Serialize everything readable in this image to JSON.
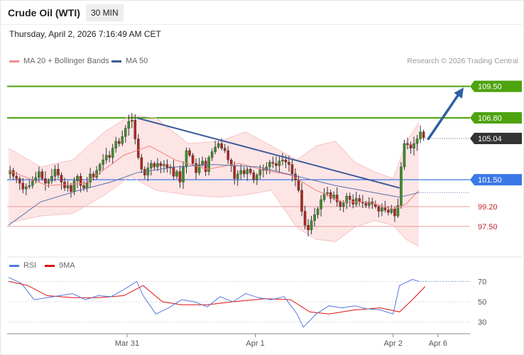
{
  "header": {
    "instrument": "Crude Oil (WTI)",
    "timeframe": "30 MIN",
    "datetime": "Thursday, April 2, 2026 7:16:49 AM CET",
    "copyright": "Research © 2026 Trading Central"
  },
  "legend": {
    "ma20": {
      "label": "MA 20 + Bollinger Bands",
      "color": "#f28b8b"
    },
    "ma50": {
      "label": "MA 50",
      "color": "#3a5a96"
    },
    "rsi": {
      "label": "RSI",
      "color": "#5577dd"
    },
    "rsi_ma": {
      "label": "9MA",
      "color": "#e01010"
    }
  },
  "chart_data": {
    "type": "candlestick",
    "x_range": [
      0,
      144
    ],
    "y_range": [
      95.0,
      111.0
    ],
    "time_labels": [
      {
        "label": "Mar 31",
        "index": 37
      },
      {
        "label": "Apr 1",
        "index": 77
      },
      {
        "label": "Apr 2",
        "index": 120
      },
      {
        "label": "Apr 6",
        "index": 134
      }
    ],
    "levels": [
      {
        "value": 109.5,
        "label": "109.50",
        "kind": "resistance"
      },
      {
        "value": 106.8,
        "label": "106.80",
        "kind": "resistance"
      },
      {
        "value": 105.04,
        "label": "105.04",
        "kind": "last"
      },
      {
        "value": 101.5,
        "label": "101.50",
        "kind": "pivot"
      },
      {
        "value": 99.2,
        "label": "99.20",
        "kind": "support"
      },
      {
        "value": 97.5,
        "label": "97.50",
        "kind": "support"
      }
    ],
    "trendline": {
      "from": [
        40,
        106.8
      ],
      "to": [
        122,
        100.8
      ]
    },
    "forecast_arrow": {
      "from": [
        131,
        105.0
      ],
      "to": [
        142,
        109.4
      ]
    },
    "close": [
      102.3,
      101.8,
      101.6,
      101.2,
      100.7,
      100.9,
      101.0,
      101.4,
      101.7,
      102.2,
      101.6,
      101.2,
      101.4,
      101.8,
      102.4,
      101.9,
      101.3,
      100.8,
      101.0,
      100.5,
      101.4,
      101.8,
      101.0,
      100.8,
      101.3,
      102.0,
      101.7,
      102.3,
      102.8,
      103.2,
      103.6,
      103.4,
      104.2,
      104.8,
      104.6,
      105.2,
      105.9,
      106.5,
      106.6,
      105.0,
      103.4,
      102.4,
      101.9,
      102.5,
      102.9,
      102.6,
      102.9,
      102.7,
      102.8,
      102.5,
      102.6,
      101.8,
      102.2,
      101.3,
      102.6,
      104.0,
      103.6,
      102.9,
      102.1,
      102.8,
      103.1,
      102.2,
      103.4,
      103.9,
      104.3,
      104.6,
      104.2,
      104.0,
      103.2,
      102.7,
      101.6,
      102.0,
      102.3,
      102.0,
      102.4,
      102.1,
      101.5,
      101.9,
      102.4,
      102.3,
      102.6,
      103.0,
      102.9,
      102.7,
      103.1,
      103.2,
      103.0,
      102.8,
      102.0,
      101.5,
      100.6,
      98.8,
      97.6,
      97.2,
      98.0,
      98.5,
      99.0,
      99.8,
      100.3,
      100.4,
      99.9,
      100.2,
      99.6,
      99.2,
      99.5,
      100.1,
      99.8,
      99.4,
      99.9,
      99.6,
      99.5,
      99.3,
      99.6,
      99.4,
      99.2,
      98.8,
      99.1,
      98.9,
      98.7,
      99.0,
      98.4,
      99.3,
      102.6,
      104.6,
      104.5,
      104.2,
      104.6,
      105.0,
      105.6,
      105.1
    ],
    "open": [
      null
    ],
    "ma20": [
      [
        0,
        102.3
      ],
      [
        12,
        101.0
      ],
      [
        24,
        101.2
      ],
      [
        36,
        103.6
      ],
      [
        44,
        104.4
      ],
      [
        52,
        103.2
      ],
      [
        62,
        102.4
      ],
      [
        72,
        102.9
      ],
      [
        80,
        102.3
      ],
      [
        88,
        101.9
      ],
      [
        96,
        100.6
      ],
      [
        104,
        99.6
      ],
      [
        112,
        99.6
      ],
      [
        120,
        99.0
      ],
      [
        124,
        99.4
      ],
      [
        128,
        100.6
      ]
    ],
    "ma50": [
      [
        0,
        97.6
      ],
      [
        10,
        99.6
      ],
      [
        22,
        100.6
      ],
      [
        32,
        101.3
      ],
      [
        40,
        102.1
      ],
      [
        52,
        102.6
      ],
      [
        64,
        102.8
      ],
      [
        78,
        102.6
      ],
      [
        90,
        101.8
      ],
      [
        102,
        101.0
      ],
      [
        114,
        100.4
      ],
      [
        122,
        100.0
      ],
      [
        128,
        100.4
      ]
    ],
    "bb_upper": [
      [
        0,
        104.2
      ],
      [
        10,
        102.6
      ],
      [
        20,
        103.2
      ],
      [
        30,
        105.6
      ],
      [
        38,
        107.0
      ],
      [
        46,
        106.8
      ],
      [
        56,
        104.6
      ],
      [
        66,
        104.8
      ],
      [
        74,
        105.6
      ],
      [
        82,
        104.4
      ],
      [
        90,
        103.2
      ],
      [
        96,
        104.4
      ],
      [
        102,
        104.8
      ],
      [
        108,
        103.0
      ],
      [
        114,
        102.2
      ],
      [
        120,
        101.6
      ],
      [
        124,
        104.6
      ],
      [
        128,
        106.4
      ]
    ],
    "bb_lower": [
      [
        0,
        97.8
      ],
      [
        10,
        98.4
      ],
      [
        20,
        98.6
      ],
      [
        30,
        100.2
      ],
      [
        38,
        101.8
      ],
      [
        46,
        100.6
      ],
      [
        56,
        100.2
      ],
      [
        66,
        100.0
      ],
      [
        74,
        100.2
      ],
      [
        82,
        100.6
      ],
      [
        90,
        97.4
      ],
      [
        96,
        96.4
      ],
      [
        102,
        96.2
      ],
      [
        108,
        97.4
      ],
      [
        114,
        98.0
      ],
      [
        120,
        97.6
      ],
      [
        124,
        96.4
      ],
      [
        128,
        95.8
      ]
    ],
    "rsi": {
      "y_range": [
        20,
        80
      ],
      "ticks": [
        70,
        50,
        30
      ],
      "rsi_path": [
        [
          0,
          74
        ],
        [
          4,
          68
        ],
        [
          8,
          52
        ],
        [
          12,
          54
        ],
        [
          16,
          56
        ],
        [
          20,
          58
        ],
        [
          24,
          52
        ],
        [
          28,
          56
        ],
        [
          32,
          55
        ],
        [
          36,
          62
        ],
        [
          40,
          70
        ],
        [
          42,
          56
        ],
        [
          46,
          38
        ],
        [
          50,
          44
        ],
        [
          54,
          52
        ],
        [
          58,
          50
        ],
        [
          62,
          45
        ],
        [
          66,
          55
        ],
        [
          70,
          50
        ],
        [
          74,
          58
        ],
        [
          78,
          54
        ],
        [
          82,
          52
        ],
        [
          86,
          55
        ],
        [
          90,
          38
        ],
        [
          92,
          25
        ],
        [
          96,
          38
        ],
        [
          100,
          46
        ],
        [
          104,
          44
        ],
        [
          108,
          46
        ],
        [
          112,
          43
        ],
        [
          116,
          42
        ],
        [
          120,
          38
        ],
        [
          122,
          66
        ],
        [
          126,
          72
        ],
        [
          128,
          70
        ]
      ],
      "ma_path": [
        [
          0,
          70
        ],
        [
          6,
          66
        ],
        [
          12,
          56
        ],
        [
          20,
          54
        ],
        [
          28,
          54
        ],
        [
          36,
          56
        ],
        [
          42,
          66
        ],
        [
          48,
          50
        ],
        [
          54,
          47
        ],
        [
          62,
          47
        ],
        [
          70,
          50
        ],
        [
          80,
          53
        ],
        [
          88,
          52
        ],
        [
          94,
          40
        ],
        [
          100,
          38
        ],
        [
          108,
          42
        ],
        [
          116,
          44
        ],
        [
          122,
          40
        ],
        [
          126,
          52
        ],
        [
          130,
          65
        ]
      ]
    }
  }
}
